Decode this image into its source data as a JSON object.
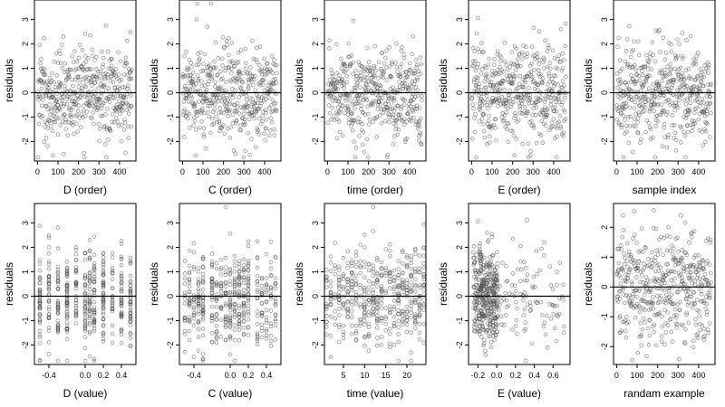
{
  "chart_data": [
    {
      "type": "scatter",
      "xlabel": "D (order)",
      "ylabel": "residuals",
      "xlim": [
        -15,
        480
      ],
      "ylim": [
        -2.8,
        3.8
      ],
      "xticks": [
        0,
        100,
        200,
        300,
        400
      ],
      "xtick_labels": [
        "0",
        "100",
        "200",
        "300",
        "400"
      ],
      "yticks": [
        -2,
        -1,
        0,
        1,
        2,
        3
      ],
      "ytick_labels": [
        "-2",
        "-1",
        "0",
        "1",
        "2",
        "3"
      ],
      "hline": 0,
      "x_mode": "order",
      "n_points": 460,
      "seed": 11,
      "residual_sd": 1.0
    },
    {
      "type": "scatter",
      "xlabel": "C (order)",
      "ylabel": "residuals",
      "xlim": [
        -15,
        480
      ],
      "ylim": [
        -2.8,
        3.8
      ],
      "xticks": [
        0,
        100,
        200,
        300,
        400
      ],
      "xtick_labels": [
        "0",
        "100",
        "200",
        "300",
        "400"
      ],
      "yticks": [
        -2,
        -1,
        0,
        1,
        2,
        3
      ],
      "ytick_labels": [
        "-2",
        "-1",
        "0",
        "1",
        "2",
        "3"
      ],
      "hline": 0,
      "x_mode": "order",
      "n_points": 460,
      "seed": 23,
      "residual_sd": 1.0
    },
    {
      "type": "scatter",
      "xlabel": "time (order)",
      "ylabel": "residuals",
      "xlim": [
        -15,
        480
      ],
      "ylim": [
        -2.8,
        3.8
      ],
      "xticks": [
        0,
        100,
        200,
        300,
        400
      ],
      "xtick_labels": [
        "0",
        "100",
        "200",
        "300",
        "400"
      ],
      "yticks": [
        -2,
        -1,
        0,
        1,
        2,
        3
      ],
      "ytick_labels": [
        "-2",
        "-1",
        "0",
        "1",
        "2",
        "3"
      ],
      "hline": 0,
      "x_mode": "order",
      "n_points": 460,
      "seed": 37,
      "residual_sd": 1.0
    },
    {
      "type": "scatter",
      "xlabel": "E (order)",
      "ylabel": "residuals",
      "xlim": [
        -15,
        480
      ],
      "ylim": [
        -2.8,
        3.8
      ],
      "xticks": [
        0,
        100,
        200,
        300,
        400
      ],
      "xtick_labels": [
        "0",
        "100",
        "200",
        "300",
        "400"
      ],
      "yticks": [
        -2,
        -1,
        0,
        1,
        2,
        3
      ],
      "ytick_labels": [
        "-2",
        "-1",
        "0",
        "1",
        "2",
        "3"
      ],
      "hline": 0,
      "x_mode": "order",
      "n_points": 460,
      "seed": 41,
      "residual_sd": 1.0
    },
    {
      "type": "scatter",
      "xlabel": "sample index",
      "ylabel": "residuals",
      "xlim": [
        -15,
        480
      ],
      "ylim": [
        -2.8,
        3.8
      ],
      "xticks": [
        0,
        100,
        200,
        300,
        400
      ],
      "xtick_labels": [
        "0",
        "100",
        "200",
        "300",
        "400"
      ],
      "yticks": [
        -2,
        -1,
        0,
        1,
        2,
        3
      ],
      "ytick_labels": [
        "-2",
        "-1",
        "0",
        "1",
        "2",
        "3"
      ],
      "hline": 0,
      "x_mode": "order",
      "n_points": 460,
      "seed": 53,
      "residual_sd": 1.0
    },
    {
      "type": "scatter",
      "xlabel": "D (value)",
      "ylabel": "residuals",
      "xlim": [
        -0.56,
        0.56
      ],
      "ylim": [
        -2.8,
        3.8
      ],
      "xticks": [
        -0.4,
        0.0,
        0.2,
        0.4
      ],
      "xtick_labels": [
        "-0.4",
        "0.0",
        "0.2",
        "0.4"
      ],
      "yticks": [
        -2,
        -1,
        0,
        1,
        2,
        3
      ],
      "ytick_labels": [
        "-2",
        "-1",
        "0",
        "1",
        "2",
        "3"
      ],
      "hline": 0,
      "x_mode": "levels",
      "levels": [
        -0.5,
        -0.4,
        -0.3,
        -0.2,
        -0.1,
        0.0,
        0.05,
        0.1,
        0.2,
        0.3,
        0.4,
        0.5
      ],
      "n_points": 460,
      "seed": 11,
      "residual_sd": 1.0
    },
    {
      "type": "scatter",
      "xlabel": "C (value)",
      "ylabel": "residuals",
      "xlim": [
        -0.56,
        0.56
      ],
      "ylim": [
        -2.8,
        3.8
      ],
      "xticks": [
        -0.4,
        0.0,
        0.2,
        0.4
      ],
      "xtick_labels": [
        "-0.4",
        "0.0",
        "0.2",
        "0.4"
      ],
      "yticks": [
        -2,
        -1,
        0,
        1,
        2,
        3
      ],
      "ytick_labels": [
        "-2",
        "-1",
        "0",
        "1",
        "2",
        "3"
      ],
      "hline": 0,
      "x_mode": "levels",
      "levels": [
        -0.5,
        -0.45,
        -0.4,
        -0.35,
        -0.3,
        -0.2,
        -0.15,
        -0.1,
        -0.05,
        0.0,
        0.05,
        0.1,
        0.15,
        0.2,
        0.3,
        0.35,
        0.4,
        0.45,
        0.5
      ],
      "n_points": 460,
      "seed": 23,
      "residual_sd": 1.0
    },
    {
      "type": "scatter",
      "xlabel": "time (value)",
      "ylabel": "residuals",
      "xlim": [
        0.5,
        24.5
      ],
      "ylim": [
        -2.8,
        3.8
      ],
      "xticks": [
        5,
        10,
        15,
        20
      ],
      "xtick_labels": [
        "5",
        "10",
        "15",
        "20"
      ],
      "yticks": [
        -2,
        -1,
        0,
        1,
        2,
        3
      ],
      "ytick_labels": [
        "-2",
        "-1",
        "0",
        "1",
        "2",
        "3"
      ],
      "hline": 0,
      "x_mode": "levels",
      "levels": [
        1,
        2,
        3,
        4,
        5,
        6,
        7,
        8,
        9,
        10,
        11,
        12,
        13,
        14,
        15,
        16,
        17,
        18,
        19,
        20,
        21,
        22,
        23,
        24
      ],
      "n_points": 460,
      "seed": 37,
      "residual_sd": 1.0
    },
    {
      "type": "scatter",
      "xlabel": "E (value)",
      "ylabel": "residuals",
      "xlim": [
        -0.3,
        0.78
      ],
      "ylim": [
        -2.8,
        3.8
      ],
      "xticks": [
        -0.2,
        0.0,
        0.2,
        0.4,
        0.6
      ],
      "xtick_labels": [
        "-0.2",
        "0.0",
        "0.2",
        "0.4",
        "0.6"
      ],
      "yticks": [
        -2,
        -1,
        0,
        1,
        2,
        3
      ],
      "ytick_labels": [
        "-2",
        "-1",
        "0",
        "1",
        "2",
        "3"
      ],
      "hline": 0,
      "x_mode": "skewed",
      "x_range": [
        -0.25,
        0.72
      ],
      "n_points": 460,
      "seed": 41,
      "residual_sd": 1.0
    },
    {
      "type": "scatter",
      "xlabel": "randam example",
      "ylabel": "residuals",
      "xlim": [
        -15,
        480
      ],
      "ylim": [
        -2.6,
        2.8
      ],
      "xticks": [
        0,
        100,
        200,
        300,
        400
      ],
      "xtick_labels": [
        "0",
        "100",
        "200",
        "300",
        "400"
      ],
      "yticks": [
        -2,
        -1,
        0,
        1,
        2
      ],
      "ytick_labels": [
        "-2",
        "-1",
        "0",
        "1",
        "2"
      ],
      "hline": 0,
      "x_mode": "order",
      "n_points": 460,
      "seed": 97,
      "residual_sd": 0.95
    }
  ],
  "style": {
    "point_color": "#444444",
    "point_opacity": 0.55,
    "line_color": "#000000"
  }
}
